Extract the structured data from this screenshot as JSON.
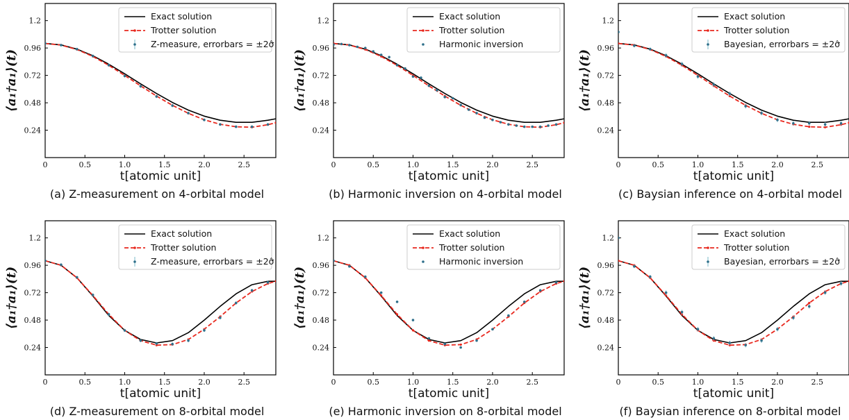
{
  "panel_grid": {
    "rows": 2,
    "cols": 3
  },
  "chart_data": [
    {
      "type": "line",
      "caption": "(a) Z-measurement on 4-orbital model",
      "xlabel": "t[atomic unit]",
      "ylabel": "⟨a₁†a₁⟩(t)",
      "xlim": [
        0,
        2.9
      ],
      "ylim": [
        0,
        1.35
      ],
      "xticks": [
        "0",
        "0.5",
        "1.0",
        "1.5",
        "2.0",
        "2.5"
      ],
      "yticks": [
        "0.24",
        "0.48",
        "0.72",
        "0.96",
        "1.2"
      ],
      "legend_position": "top-right",
      "series": [
        {
          "name": "Exact solution",
          "kind": "line",
          "color": "#000000",
          "x": [
            0,
            0.2,
            0.4,
            0.6,
            0.8,
            1.0,
            1.2,
            1.4,
            1.6,
            1.8,
            2.0,
            2.2,
            2.4,
            2.6,
            2.8,
            2.9
          ],
          "y": [
            1.0,
            0.987,
            0.95,
            0.892,
            0.818,
            0.734,
            0.646,
            0.561,
            0.483,
            0.416,
            0.363,
            0.327,
            0.309,
            0.309,
            0.327,
            0.34
          ]
        },
        {
          "name": "Trotter solution",
          "kind": "dashed",
          "color": "#e8281e",
          "x": [
            0,
            0.2,
            0.4,
            0.6,
            0.8,
            1.0,
            1.2,
            1.4,
            1.6,
            1.8,
            2.0,
            2.2,
            2.4,
            2.6,
            2.8,
            2.9
          ],
          "y": [
            1.0,
            0.986,
            0.947,
            0.886,
            0.808,
            0.72,
            0.628,
            0.539,
            0.458,
            0.388,
            0.331,
            0.292,
            0.27,
            0.266,
            0.288,
            0.305
          ]
        },
        {
          "name": "Z-measure, errorbars = ±2σ̂",
          "kind": "errorbar",
          "color": "#2e6f8a",
          "x": [
            0,
            0.2,
            0.4,
            0.6,
            0.8,
            1.0,
            1.2,
            1.4,
            1.6,
            1.8,
            2.0,
            2.2,
            2.4,
            2.6,
            2.8
          ],
          "y": [
            1.0,
            0.985,
            0.95,
            0.89,
            0.81,
            0.715,
            0.625,
            0.535,
            0.455,
            0.39,
            0.33,
            0.29,
            0.27,
            0.27,
            0.29
          ],
          "err": [
            0.01,
            0.01,
            0.012,
            0.012,
            0.014,
            0.014,
            0.014,
            0.014,
            0.014,
            0.012,
            0.012,
            0.012,
            0.012,
            0.012,
            0.012
          ]
        }
      ]
    },
    {
      "type": "line",
      "caption": "(b) Harmonic inversion on 4-orbital model",
      "xlabel": "t[atomic unit]",
      "ylabel": "⟨a₁†a₁⟩(t)",
      "xlim": [
        0,
        2.9
      ],
      "ylim": [
        0,
        1.35
      ],
      "xticks": [
        "0",
        "0.5",
        "1.0",
        "1.5",
        "2.0",
        "2.5"
      ],
      "yticks": [
        "0.24",
        "0.48",
        "0.72",
        "0.96",
        "1.2"
      ],
      "legend_position": "top-right",
      "series": [
        {
          "name": "Exact solution",
          "kind": "line",
          "color": "#000000",
          "x": [
            0,
            0.2,
            0.4,
            0.6,
            0.8,
            1.0,
            1.2,
            1.4,
            1.6,
            1.8,
            2.0,
            2.2,
            2.4,
            2.6,
            2.8,
            2.9
          ],
          "y": [
            1.0,
            0.987,
            0.95,
            0.892,
            0.818,
            0.734,
            0.646,
            0.561,
            0.483,
            0.416,
            0.363,
            0.327,
            0.309,
            0.309,
            0.327,
            0.34
          ]
        },
        {
          "name": "Trotter solution",
          "kind": "dashed",
          "color": "#e8281e",
          "x": [
            0,
            0.2,
            0.4,
            0.6,
            0.8,
            1.0,
            1.2,
            1.4,
            1.6,
            1.8,
            2.0,
            2.2,
            2.4,
            2.6,
            2.8,
            2.9
          ],
          "y": [
            1.0,
            0.986,
            0.947,
            0.886,
            0.808,
            0.72,
            0.628,
            0.539,
            0.458,
            0.388,
            0.331,
            0.292,
            0.27,
            0.266,
            0.288,
            0.305
          ]
        },
        {
          "name": "Harmonic inversion",
          "kind": "dots",
          "color": "#2e6f8a",
          "x": [
            0,
            0.1,
            0.2,
            0.3,
            0.4,
            0.5,
            0.6,
            0.7,
            0.8,
            0.9,
            1.0,
            1.1,
            1.2,
            1.3,
            1.4,
            1.5,
            1.6,
            1.7,
            1.8,
            1.9,
            2.0,
            2.1,
            2.2,
            2.3,
            2.4,
            2.5,
            2.6,
            2.7,
            2.8
          ],
          "y": [
            0.99,
            0.995,
            0.985,
            0.97,
            0.96,
            0.93,
            0.9,
            0.88,
            0.81,
            0.78,
            0.71,
            0.7,
            0.63,
            0.59,
            0.53,
            0.52,
            0.46,
            0.42,
            0.39,
            0.35,
            0.33,
            0.31,
            0.29,
            0.28,
            0.27,
            0.27,
            0.27,
            0.28,
            0.29
          ]
        }
      ]
    },
    {
      "type": "line",
      "caption": "(c) Baysian inference on 4-orbital model",
      "xlabel": "t[atomic unit]",
      "ylabel": "⟨a₁†a₁⟩(t)",
      "xlim": [
        0,
        2.9
      ],
      "ylim": [
        0,
        1.35
      ],
      "xticks": [
        "0",
        "0.5",
        "1.0",
        "1.5",
        "2.0",
        "2.5"
      ],
      "yticks": [
        "0.24",
        "0.48",
        "0.72",
        "0.96",
        "1.2"
      ],
      "legend_position": "top-right",
      "series": [
        {
          "name": "Exact solution",
          "kind": "line",
          "color": "#000000",
          "x": [
            0,
            0.2,
            0.4,
            0.6,
            0.8,
            1.0,
            1.2,
            1.4,
            1.6,
            1.8,
            2.0,
            2.2,
            2.4,
            2.6,
            2.8,
            2.9
          ],
          "y": [
            1.0,
            0.987,
            0.95,
            0.892,
            0.818,
            0.734,
            0.646,
            0.561,
            0.483,
            0.416,
            0.363,
            0.327,
            0.309,
            0.309,
            0.327,
            0.34
          ]
        },
        {
          "name": "Trotter solution",
          "kind": "dashed",
          "color": "#e8281e",
          "x": [
            0,
            0.2,
            0.4,
            0.6,
            0.8,
            1.0,
            1.2,
            1.4,
            1.6,
            1.8,
            2.0,
            2.2,
            2.4,
            2.6,
            2.8,
            2.9
          ],
          "y": [
            1.0,
            0.986,
            0.947,
            0.886,
            0.808,
            0.72,
            0.628,
            0.539,
            0.458,
            0.388,
            0.331,
            0.292,
            0.27,
            0.266,
            0.288,
            0.305
          ]
        },
        {
          "name": "Bayesian, errorbars = ±2σ̂",
          "kind": "errorbar",
          "color": "#2e6f8a",
          "x": [
            0,
            0.2,
            0.4,
            0.6,
            0.8,
            1.0,
            1.2,
            1.4,
            1.6,
            1.8,
            2.0,
            2.2,
            2.4,
            2.6,
            2.8
          ],
          "y": [
            1.1,
            0.98,
            0.95,
            0.895,
            0.82,
            0.71,
            0.64,
            0.56,
            0.45,
            0.39,
            0.33,
            0.3,
            0.3,
            0.29,
            0.3
          ],
          "err": [
            0.01,
            0.015,
            0.015,
            0.02,
            0.02,
            0.02,
            0.02,
            0.02,
            0.02,
            0.02,
            0.02,
            0.02,
            0.02,
            0.02,
            0.02
          ]
        }
      ]
    },
    {
      "type": "line",
      "caption": "(d) Z-measurement on 8-orbital model",
      "xlabel": "t[atomic unit]",
      "ylabel": "⟨a₁†a₁⟩(t)",
      "xlim": [
        0,
        2.9
      ],
      "ylim": [
        0,
        1.35
      ],
      "xticks": [
        "0",
        "0.5",
        "1.0",
        "1.5",
        "2.0",
        "2.5"
      ],
      "yticks": [
        "0.24",
        "0.48",
        "0.72",
        "0.96",
        "1.2"
      ],
      "legend_position": "top-right",
      "series": [
        {
          "name": "Exact solution",
          "kind": "line",
          "color": "#000000",
          "x": [
            0,
            0.2,
            0.4,
            0.6,
            0.8,
            1.0,
            1.2,
            1.4,
            1.6,
            1.8,
            2.0,
            2.2,
            2.4,
            2.6,
            2.8,
            2.9
          ],
          "y": [
            1.0,
            0.96,
            0.85,
            0.69,
            0.52,
            0.39,
            0.31,
            0.28,
            0.3,
            0.37,
            0.48,
            0.6,
            0.71,
            0.79,
            0.82,
            0.82
          ]
        },
        {
          "name": "Trotter solution",
          "kind": "dashed",
          "color": "#e8281e",
          "x": [
            0,
            0.2,
            0.4,
            0.6,
            0.8,
            1.0,
            1.2,
            1.4,
            1.6,
            1.8,
            2.0,
            2.2,
            2.4,
            2.6,
            2.8,
            2.9
          ],
          "y": [
            1.0,
            0.96,
            0.85,
            0.695,
            0.53,
            0.39,
            0.3,
            0.26,
            0.265,
            0.31,
            0.4,
            0.51,
            0.63,
            0.73,
            0.8,
            0.82
          ]
        },
        {
          "name": "Z-measure, errorbars = ±2σ̂",
          "kind": "errorbar",
          "color": "#2e6f8a",
          "x": [
            0,
            0.2,
            0.4,
            0.6,
            0.8,
            1.0,
            1.2,
            1.4,
            1.6,
            1.8,
            2.0,
            2.2,
            2.4,
            2.6,
            2.8
          ],
          "y": [
            1.0,
            0.965,
            0.855,
            0.7,
            0.53,
            0.39,
            0.3,
            0.275,
            0.27,
            0.3,
            0.39,
            0.5,
            0.63,
            0.74,
            0.81
          ],
          "err": [
            0.01,
            0.012,
            0.012,
            0.014,
            0.014,
            0.014,
            0.014,
            0.014,
            0.014,
            0.014,
            0.014,
            0.014,
            0.014,
            0.014,
            0.014
          ]
        }
      ]
    },
    {
      "type": "line",
      "caption": "(e) Harmonic inversion on 8-orbital model",
      "xlabel": "t[atomic unit]",
      "ylabel": "⟨a₁†a₁⟩(t)",
      "xlim": [
        0,
        2.9
      ],
      "ylim": [
        0,
        1.35
      ],
      "xticks": [
        "0",
        "0.5",
        "1.0",
        "1.5",
        "2.0",
        "2.5"
      ],
      "yticks": [
        "0.24",
        "0.48",
        "0.72",
        "0.96",
        "1.2"
      ],
      "legend_position": "top-right",
      "series": [
        {
          "name": "Exact solution",
          "kind": "line",
          "color": "#000000",
          "x": [
            0,
            0.2,
            0.4,
            0.6,
            0.8,
            1.0,
            1.2,
            1.4,
            1.6,
            1.8,
            2.0,
            2.2,
            2.4,
            2.6,
            2.8,
            2.9
          ],
          "y": [
            1.0,
            0.96,
            0.85,
            0.69,
            0.52,
            0.39,
            0.31,
            0.28,
            0.3,
            0.37,
            0.48,
            0.6,
            0.71,
            0.79,
            0.82,
            0.82
          ]
        },
        {
          "name": "Trotter solution",
          "kind": "dashed",
          "color": "#e8281e",
          "x": [
            0,
            0.2,
            0.4,
            0.6,
            0.8,
            1.0,
            1.2,
            1.4,
            1.6,
            1.8,
            2.0,
            2.2,
            2.4,
            2.6,
            2.8,
            2.9
          ],
          "y": [
            1.0,
            0.96,
            0.85,
            0.695,
            0.53,
            0.39,
            0.3,
            0.26,
            0.265,
            0.31,
            0.4,
            0.51,
            0.63,
            0.73,
            0.8,
            0.82
          ]
        },
        {
          "name": "Harmonic inversion",
          "kind": "dots",
          "color": "#2e6f8a",
          "x": [
            0,
            0.2,
            0.4,
            0.6,
            0.8,
            1.0,
            1.2,
            1.4,
            1.6,
            1.8,
            2.0,
            2.2,
            2.4,
            2.6,
            2.8
          ],
          "y": [
            1.0,
            0.95,
            0.86,
            0.72,
            0.64,
            0.48,
            0.32,
            0.27,
            0.24,
            0.3,
            0.4,
            0.52,
            0.64,
            0.74,
            0.81
          ]
        }
      ]
    },
    {
      "type": "line",
      "caption": "(f) Baysian inference on 8-orbital model",
      "xlabel": "t[atomic unit]",
      "ylabel": "⟨a₁†a₁⟩(t)",
      "xlim": [
        0,
        2.9
      ],
      "ylim": [
        0,
        1.35
      ],
      "xticks": [
        "0",
        "0.5",
        "1.0",
        "1.5",
        "2.0",
        "2.5"
      ],
      "yticks": [
        "0.24",
        "0.48",
        "0.72",
        "0.96",
        "1.2"
      ],
      "legend_position": "top-right",
      "series": [
        {
          "name": "Exact solution",
          "kind": "line",
          "color": "#000000",
          "x": [
            0,
            0.2,
            0.4,
            0.6,
            0.8,
            1.0,
            1.2,
            1.4,
            1.6,
            1.8,
            2.0,
            2.2,
            2.4,
            2.6,
            2.8,
            2.9
          ],
          "y": [
            1.0,
            0.96,
            0.85,
            0.69,
            0.52,
            0.39,
            0.31,
            0.28,
            0.3,
            0.37,
            0.48,
            0.6,
            0.71,
            0.79,
            0.82,
            0.82
          ]
        },
        {
          "name": "Trotter solution",
          "kind": "dashed",
          "color": "#e8281e",
          "x": [
            0,
            0.2,
            0.4,
            0.6,
            0.8,
            1.0,
            1.2,
            1.4,
            1.6,
            1.8,
            2.0,
            2.2,
            2.4,
            2.6,
            2.8,
            2.9
          ],
          "y": [
            1.0,
            0.96,
            0.85,
            0.695,
            0.53,
            0.39,
            0.3,
            0.26,
            0.265,
            0.31,
            0.4,
            0.51,
            0.63,
            0.73,
            0.8,
            0.82
          ]
        },
        {
          "name": "Bayesian, errorbars = ±2σ̂",
          "kind": "errorbar",
          "color": "#2e6f8a",
          "x": [
            0,
            0.2,
            0.4,
            0.6,
            0.8,
            1.0,
            1.2,
            1.4,
            1.6,
            1.8,
            2.0,
            2.2,
            2.4,
            2.6,
            2.8
          ],
          "y": [
            1.2,
            0.95,
            0.86,
            0.72,
            0.55,
            0.4,
            0.32,
            0.28,
            0.26,
            0.3,
            0.4,
            0.5,
            0.6,
            0.72,
            0.8
          ],
          "err": [
            0.01,
            0.015,
            0.015,
            0.02,
            0.02,
            0.02,
            0.02,
            0.02,
            0.02,
            0.02,
            0.02,
            0.02,
            0.02,
            0.02,
            0.02
          ]
        }
      ]
    }
  ]
}
